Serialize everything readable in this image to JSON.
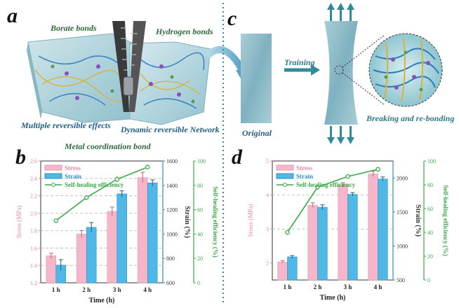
{
  "panels": {
    "a": {
      "letter": "a",
      "labels": {
        "borate": "Borate bonds",
        "hydrogen": "Hydrogen bonds",
        "multiple": "Multiple reversible effects",
        "dynamic": "Dynamic reversible Network",
        "metal": "Metal coordination bond"
      }
    },
    "c": {
      "letter": "c",
      "labels": {
        "original": "Original",
        "training": "Training",
        "breaking": "Breaking and re-bonding"
      }
    },
    "b": {
      "letter": "b"
    },
    "d": {
      "letter": "d"
    }
  },
  "colors": {
    "stress": "#f4b6c8",
    "strain": "#4fb8e6",
    "efficiency": "#3aaa48",
    "stress_axis": "#e8879f",
    "strain_axis": "#2a8fc8",
    "eff_axis": "#3aaa48",
    "divider": "#3a8a9a"
  },
  "chart_data": [
    {
      "type": "bar",
      "panel": "b",
      "categories": [
        "1 h",
        "2 h",
        "3 h",
        "4 h"
      ],
      "xlabel": "Time (h)",
      "ylabel_left": "Stress (MPa)",
      "ylabel_mid": "Strain (%)",
      "ylabel_right": "Self-healing efficiency (%)",
      "ylim_left": [
        1.2,
        2.6
      ],
      "yticks_left": [
        "1.2",
        "1.4",
        "1.6",
        "1.8",
        "2.0",
        "2.2",
        "2.4",
        "2.6"
      ],
      "ylim_mid": [
        600,
        1600
      ],
      "yticks_mid": [
        "600",
        "800",
        "1000",
        "1200",
        "1400",
        "1600"
      ],
      "ylim_right": [
        0,
        100
      ],
      "yticks_right": [
        "0",
        "20",
        "40",
        "60",
        "80",
        "100"
      ],
      "legend": {
        "stress": "Stress",
        "strain": "Strain",
        "efficiency": "Self-healing efficiency"
      },
      "series": [
        {
          "name": "Stress",
          "axis": "left",
          "values": [
            1.51,
            1.76,
            2.02,
            2.41
          ],
          "errors": [
            0.03,
            0.04,
            0.05,
            0.06
          ]
        },
        {
          "name": "Strain",
          "axis": "mid",
          "values": [
            745,
            1055,
            1330,
            1420
          ],
          "errors": [
            45,
            40,
            25,
            25
          ]
        },
        {
          "name": "Self-healing efficiency",
          "axis": "right",
          "values": [
            51,
            70,
            85,
            95
          ],
          "errors": [
            1.5,
            2,
            2.5,
            2
          ]
        }
      ]
    },
    {
      "type": "bar",
      "panel": "d",
      "categories": [
        "1 h",
        "2 h",
        "3 h",
        "4 h"
      ],
      "xlabel": "Time (h)",
      "ylabel_left": "Stress (MPa)",
      "ylabel_mid": "Strain (%)",
      "ylabel_right": "Self-healing efficiency (%)",
      "ylim_left": [
        1.5,
        5
      ],
      "yticks_left": [
        "2",
        "3",
        "4",
        "5"
      ],
      "ylim_mid": [
        500,
        2250
      ],
      "yticks_mid": [
        "500",
        "1000",
        "1500",
        "2000"
      ],
      "ylim_right": [
        0,
        100
      ],
      "yticks_right": [
        "0",
        "20",
        "40",
        "60",
        "80",
        "100"
      ],
      "legend": {
        "stress": "Stress",
        "strain": "Strain",
        "efficiency": "Self-healing efficiency"
      },
      "series": [
        {
          "name": "Stress",
          "axis": "left",
          "values": [
            2.03,
            3.7,
            4.3,
            4.62
          ],
          "errors": [
            0.04,
            0.07,
            0.06,
            0.08
          ]
        },
        {
          "name": "Strain",
          "axis": "mid",
          "values": [
            840,
            1570,
            1760,
            1985
          ],
          "errors": [
            20,
            35,
            25,
            30
          ]
        },
        {
          "name": "Self-healing efficiency",
          "axis": "right",
          "values": [
            40,
            78,
            87,
            93
          ],
          "errors": [
            2,
            2,
            1.5,
            2
          ]
        }
      ]
    }
  ]
}
